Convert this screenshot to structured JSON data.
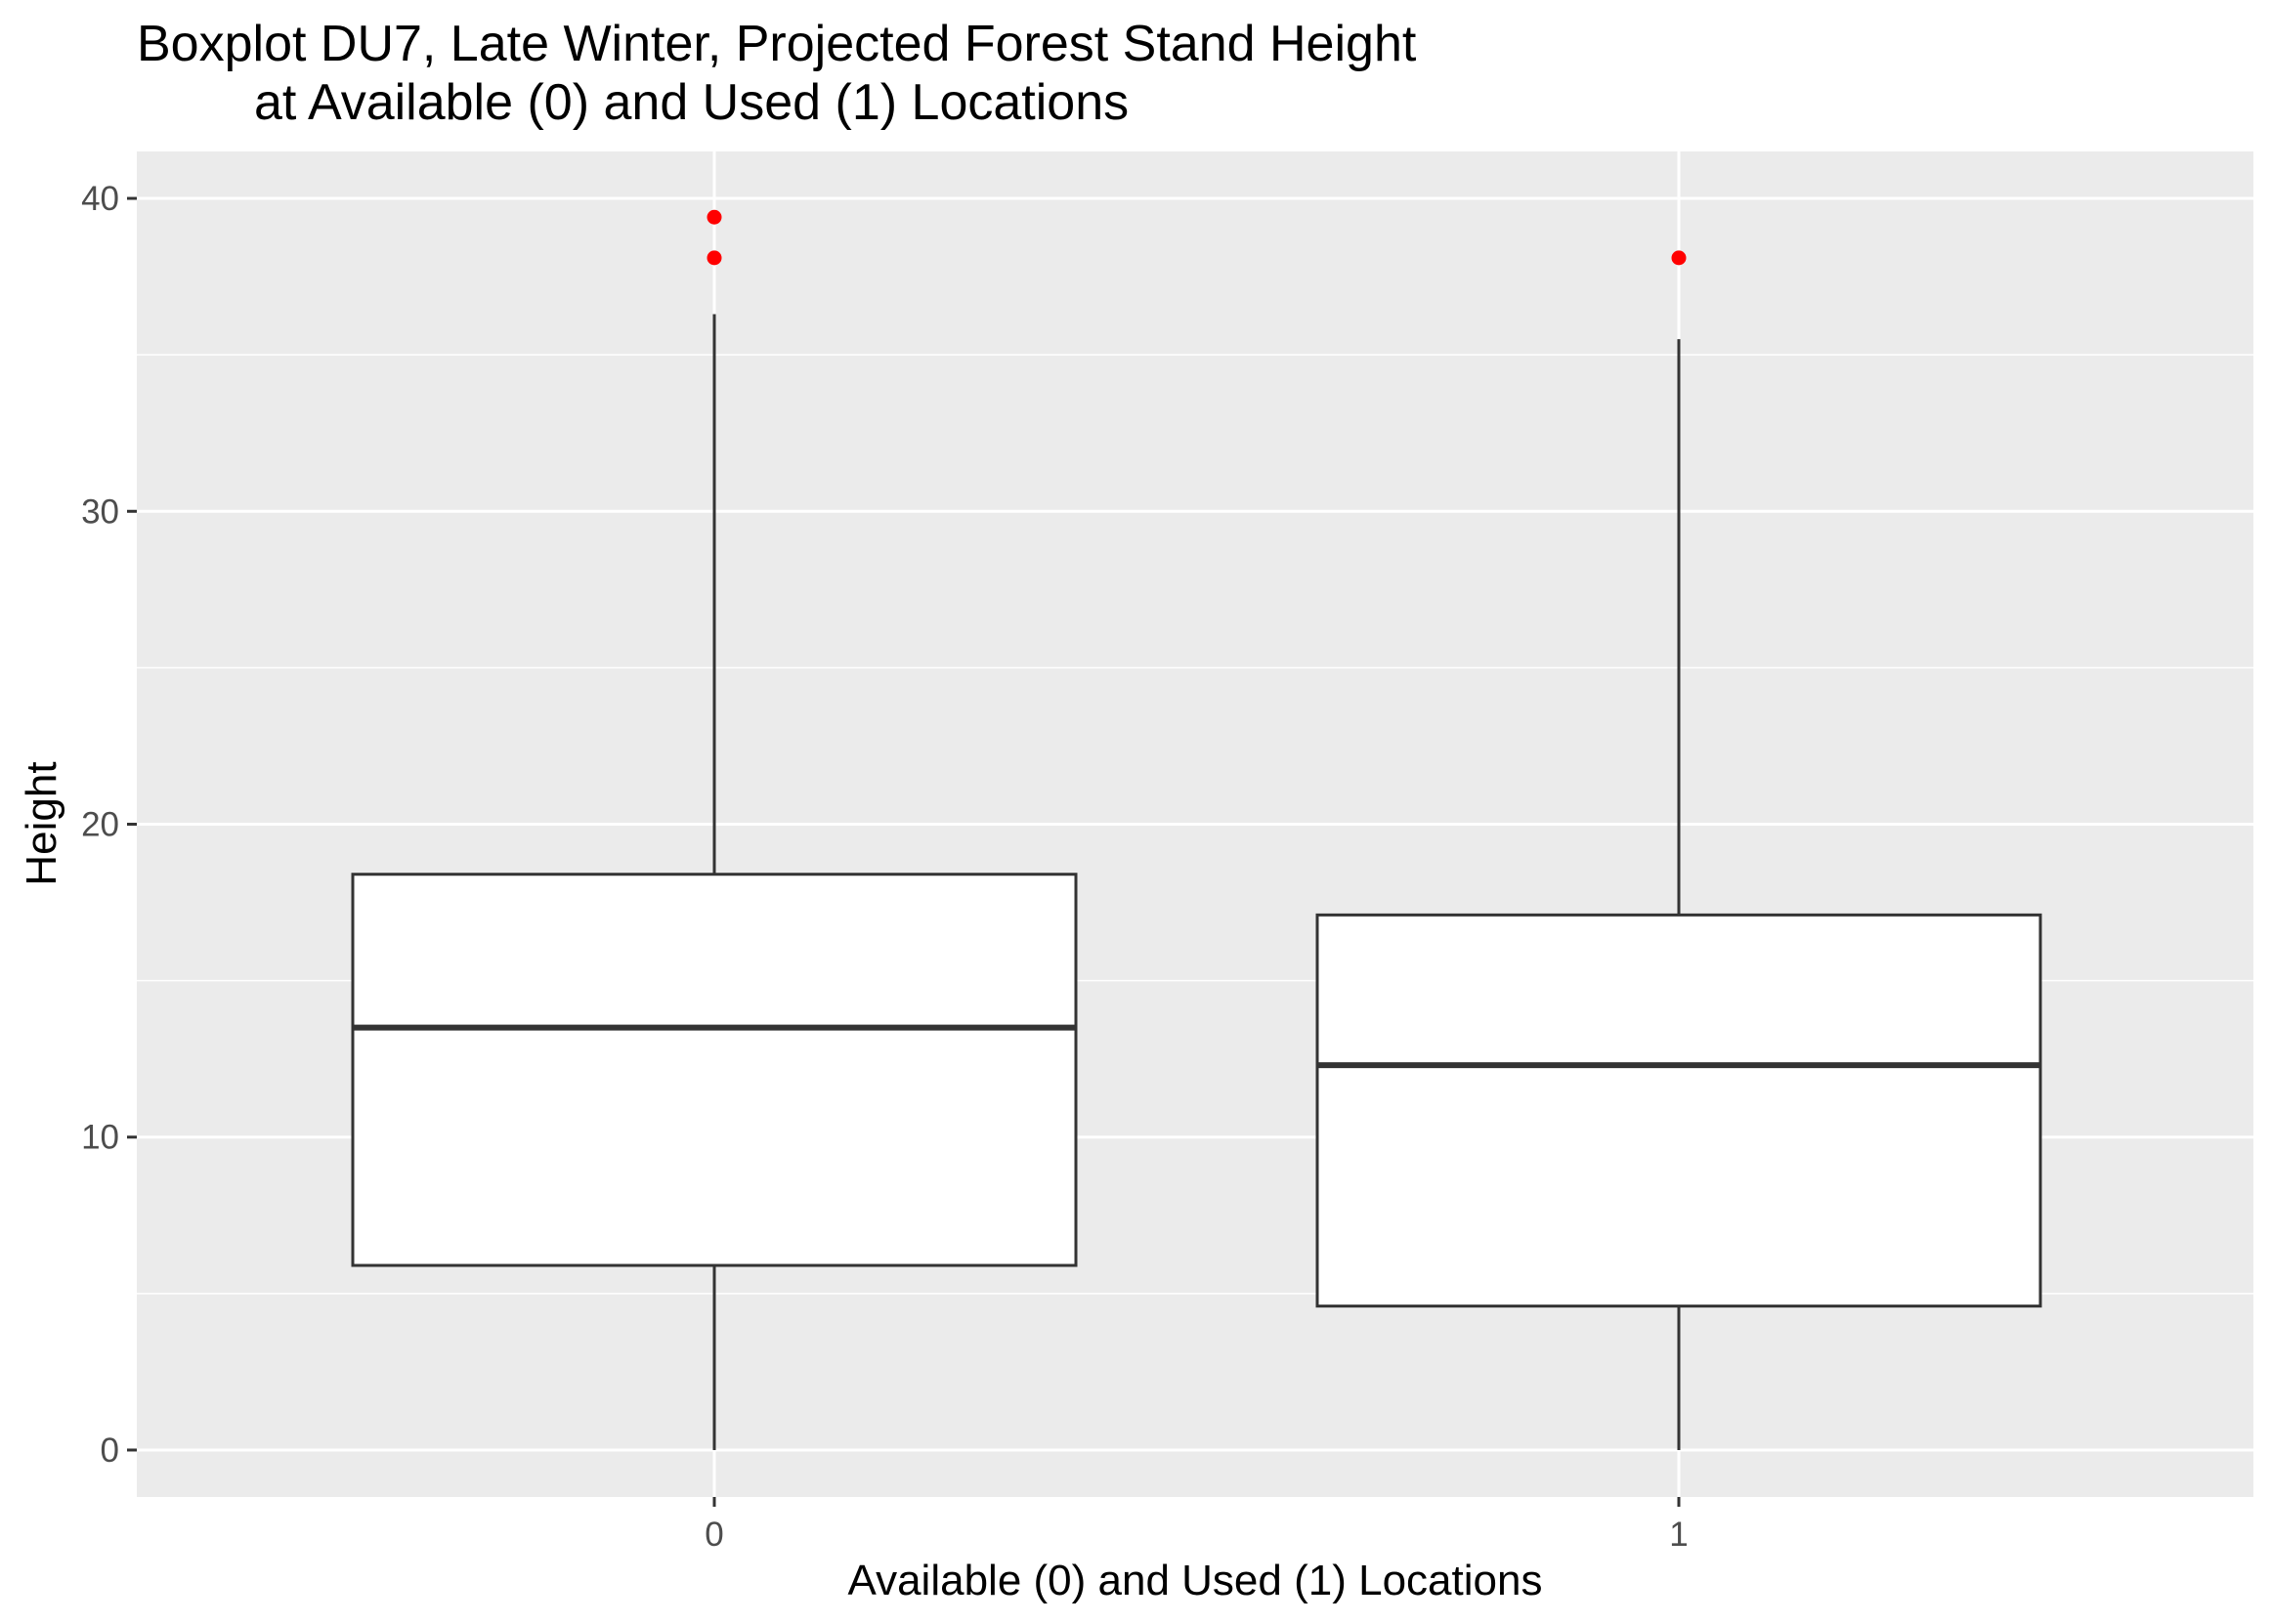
{
  "chart_data": {
    "type": "boxplot",
    "title": "Boxplot DU7, Late Winter, Projected Forest Stand Height",
    "subtitle": "at Available (0) and Used (1) Locations",
    "xlabel": "Available (0) and Used (1) Locations",
    "ylabel": "Height",
    "ylim": [
      -1.5,
      41.5
    ],
    "yticks": [
      0,
      10,
      20,
      30,
      40
    ],
    "grid": true,
    "legend": "none",
    "categories": [
      "0",
      "1"
    ],
    "boxes": [
      {
        "category": "0",
        "min": 0,
        "q1": 5.9,
        "median": 13.5,
        "q3": 18.4,
        "max": 36.3,
        "outliers": [
          38.1,
          39.4
        ]
      },
      {
        "category": "1",
        "min": 0,
        "q1": 4.6,
        "median": 12.3,
        "q3": 17.1,
        "max": 35.5,
        "outliers": [
          38.1
        ]
      }
    ],
    "colors": {
      "panel_background": "#ebebeb",
      "major_grid": "#ffffff",
      "box_fill": "#ffffff",
      "box_line": "#333333",
      "outlier": "#ff0000",
      "tick_mark": "#333333"
    }
  }
}
